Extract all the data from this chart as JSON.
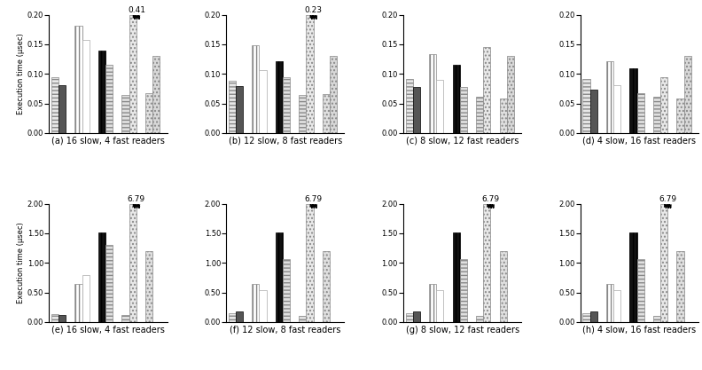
{
  "subplots": [
    {
      "label": "(a) 16 slow, 4 fast readers",
      "ylim": [
        0,
        0.2
      ],
      "yticks": [
        0.0,
        0.05,
        0.1,
        0.15,
        0.2
      ],
      "values": [
        0.094,
        0.081,
        0.181,
        0.157,
        0.139,
        0.116,
        0.065,
        0.41,
        0.068,
        0.131
      ],
      "overflow_val": "0.41",
      "overflow_bar": 7
    },
    {
      "label": "(b) 12 slow, 8 fast readers",
      "ylim": [
        0,
        0.2
      ],
      "yticks": [
        0.0,
        0.05,
        0.1,
        0.15,
        0.2
      ],
      "values": [
        0.089,
        0.079,
        0.148,
        0.107,
        0.121,
        0.094,
        0.064,
        0.23,
        0.066,
        0.131
      ],
      "overflow_val": "0.23",
      "overflow_bar": 7
    },
    {
      "label": "(c) 8 slow, 12 fast readers",
      "ylim": [
        0,
        0.2
      ],
      "yticks": [
        0.0,
        0.05,
        0.1,
        0.15,
        0.2
      ],
      "values": [
        0.092,
        0.078,
        0.134,
        0.09,
        0.115,
        0.078,
        0.062,
        0.145,
        0.058,
        0.13
      ],
      "overflow_val": null,
      "overflow_bar": null
    },
    {
      "label": "(d) 4 slow, 16 fast readers",
      "ylim": [
        0,
        0.2
      ],
      "yticks": [
        0.0,
        0.05,
        0.1,
        0.15,
        0.2
      ],
      "values": [
        0.091,
        0.074,
        0.122,
        0.081,
        0.109,
        0.067,
        0.061,
        0.095,
        0.058,
        0.131
      ],
      "overflow_val": null,
      "overflow_bar": null
    },
    {
      "label": "(e) 16 slow, 4 fast readers",
      "ylim": [
        0,
        2.0
      ],
      "yticks": [
        0.0,
        0.5,
        1.0,
        1.5,
        2.0
      ],
      "values": [
        0.13,
        0.12,
        0.65,
        0.8,
        1.52,
        1.3,
        0.12,
        6.79,
        1.2,
        0.0
      ],
      "overflow_val": "6.79",
      "overflow_bar": 7
    },
    {
      "label": "(f) 12 slow, 8 fast readers",
      "ylim": [
        0,
        2.0
      ],
      "yticks": [
        0.0,
        0.5,
        1.0,
        1.5,
        2.0
      ],
      "values": [
        0.14,
        0.17,
        0.65,
        0.54,
        1.52,
        1.06,
        0.1,
        6.79,
        1.2,
        0.0
      ],
      "overflow_val": "6.79",
      "overflow_bar": 7
    },
    {
      "label": "(g) 8 slow, 12 fast readers",
      "ylim": [
        0,
        2.0
      ],
      "yticks": [
        0.0,
        0.5,
        1.0,
        1.5,
        2.0
      ],
      "values": [
        0.14,
        0.17,
        0.65,
        0.54,
        1.52,
        1.06,
        0.1,
        6.79,
        1.2,
        0.0
      ],
      "overflow_val": "6.79",
      "overflow_bar": 7
    },
    {
      "label": "(h) 4 slow, 16 fast readers",
      "ylim": [
        0,
        2.0
      ],
      "yticks": [
        0.0,
        0.5,
        1.0,
        1.5,
        2.0
      ],
      "values": [
        0.14,
        0.17,
        0.65,
        0.54,
        1.52,
        1.06,
        0.1,
        6.79,
        1.2,
        0.0
      ],
      "overflow_val": "6.79",
      "overflow_bar": 7
    }
  ],
  "bar_styles": [
    {
      "fc": "#e8e8e8",
      "hatch": "----",
      "ec": "#888888",
      "lw": 0.5
    },
    {
      "fc": "#555555",
      "hatch": "",
      "ec": "#000000",
      "lw": 0.5
    },
    {
      "fc": "#ffffff",
      "hatch": "||||",
      "ec": "#888888",
      "lw": 0.5
    },
    {
      "fc": "#ffffff",
      "hatch": "",
      "ec": "#aaaaaa",
      "lw": 0.5
    },
    {
      "fc": "#111111",
      "hatch": "||||",
      "ec": "#000000",
      "lw": 0.5
    },
    {
      "fc": "#e0e0e0",
      "hatch": "----",
      "ec": "#888888",
      "lw": 0.5
    },
    {
      "fc": "#e0e0e0",
      "hatch": "----",
      "ec": "#888888",
      "lw": 0.5
    },
    {
      "fc": "#e8e8e8",
      "hatch": "....",
      "ec": "#888888",
      "lw": 0.5
    },
    {
      "fc": "#e0e0e0",
      "hatch": "....",
      "ec": "#888888",
      "lw": 0.5
    },
    {
      "fc": "#d8d8d8",
      "hatch": "....",
      "ec": "#888888",
      "lw": 0.5
    }
  ],
  "ylabel": "Execution time (µsec)"
}
